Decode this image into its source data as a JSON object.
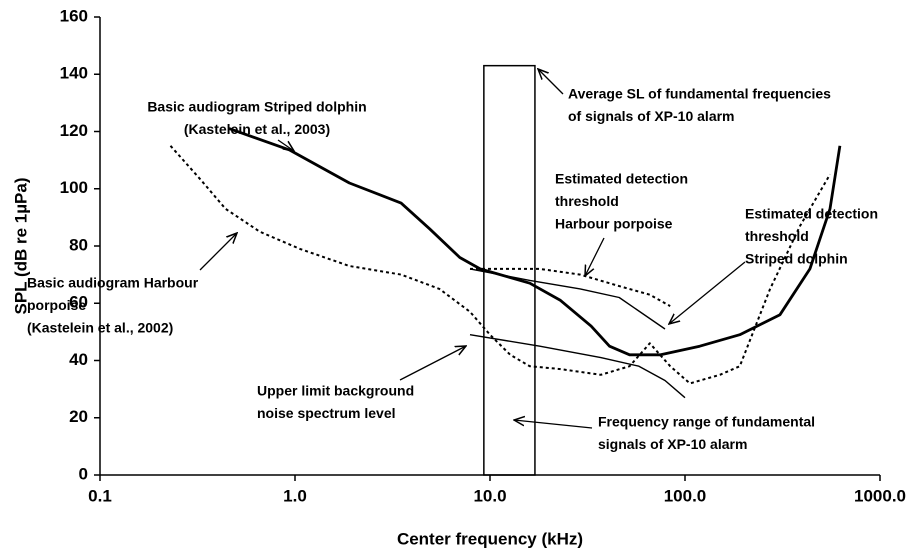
{
  "chart_data": {
    "type": "line",
    "xlabel": "Center frequency (kHz)",
    "ylabel": "SPL (dB re 1µPa)",
    "xscale": "log",
    "xlim": [
      0.1,
      1000
    ],
    "xticks": [
      0.1,
      {
        "value": 1,
        "label": "1.0"
      },
      {
        "value": 10,
        "label": "10.0"
      },
      {
        "value": 100,
        "label": "100.0"
      },
      {
        "value": 1000,
        "label": "1000.0"
      }
    ],
    "ylim": [
      0,
      160
    ],
    "yticks": [
      0,
      20,
      40,
      60,
      80,
      100,
      120,
      140,
      160
    ],
    "grid": false,
    "series": [
      {
        "name": "Basic audiogram Striped dolphin",
        "color": "#000000",
        "style": "solid",
        "line_width": 2.8,
        "x": [
          0.46,
          0.94,
          1.9,
          3.5,
          4.9,
          7,
          8.9,
          16,
          23,
          33,
          41,
          52,
          75,
          119,
          191,
          307,
          437,
          554,
          623
        ],
        "values": [
          121,
          113.5,
          102,
          95,
          86,
          76,
          72,
          67,
          61,
          52,
          45,
          42,
          42,
          45,
          49,
          56,
          72,
          93,
          115
        ]
      },
      {
        "name": "Basic audiogram Harbour porpoise",
        "color": "#000000",
        "style": "dashed",
        "line_width": 2,
        "x": [
          0.23,
          0.33,
          0.44,
          0.66,
          1.06,
          1.9,
          3.5,
          5.5,
          7.9,
          10,
          12.7,
          16,
          23,
          37,
          52,
          66,
          84,
          106,
          151,
          191,
          273,
          389,
          554
        ],
        "values": [
          115,
          103,
          93,
          85,
          79,
          73,
          70,
          65,
          57,
          49,
          42,
          38,
          37,
          35,
          38,
          46,
          38,
          32,
          35,
          38,
          65,
          87,
          105
        ]
      },
      {
        "name": "Estimated detection threshold Harbour porpoise",
        "color": "#000000",
        "style": "dashed",
        "line_width": 2,
        "x": [
          7.9,
          18,
          29,
          46,
          66,
          84
        ],
        "values": [
          72,
          72,
          70,
          66,
          63,
          59
        ]
      },
      {
        "name": "Estimated detection threshold Striped dolphin",
        "color": "#000000",
        "style": "solid",
        "line_width": 1.4,
        "x": [
          7.9,
          16,
          29,
          46,
          79
        ],
        "values": [
          72,
          68,
          65,
          62,
          51
        ]
      },
      {
        "name": "Upper limit background noise spectrum level",
        "color": "#000000",
        "style": "solid",
        "line_width": 1.4,
        "x": [
          7.9,
          18,
          37,
          58,
          79,
          100
        ],
        "values": [
          49,
          45,
          41,
          38,
          33,
          27
        ]
      }
    ],
    "box": {
      "x": [
        9.3,
        17
      ],
      "y": [
        0,
        143
      ]
    },
    "annotations": [
      {
        "lines": [
          "Basic audiogram Striped dolphin",
          "(Kastelein et al., 2003)"
        ]
      },
      {
        "lines": [
          "Average SL of fundamental frequencies",
          "of signals of XP-10 alarm"
        ]
      },
      {
        "lines": [
          "Estimated detection",
          "threshold",
          "Harbour porpoise"
        ]
      },
      {
        "lines": [
          "Estimated detection",
          "threshold",
          "Striped dolphin"
        ]
      },
      {
        "lines": [
          "Basic audiogram Harbour",
          "porpoise",
          "(Kastelein et al., 2002)"
        ]
      },
      {
        "lines": [
          "Upper limit background",
          "noise spectrum level"
        ]
      },
      {
        "lines": [
          "Frequency range of fundamental",
          "signals of XP-10 alarm"
        ]
      }
    ]
  }
}
